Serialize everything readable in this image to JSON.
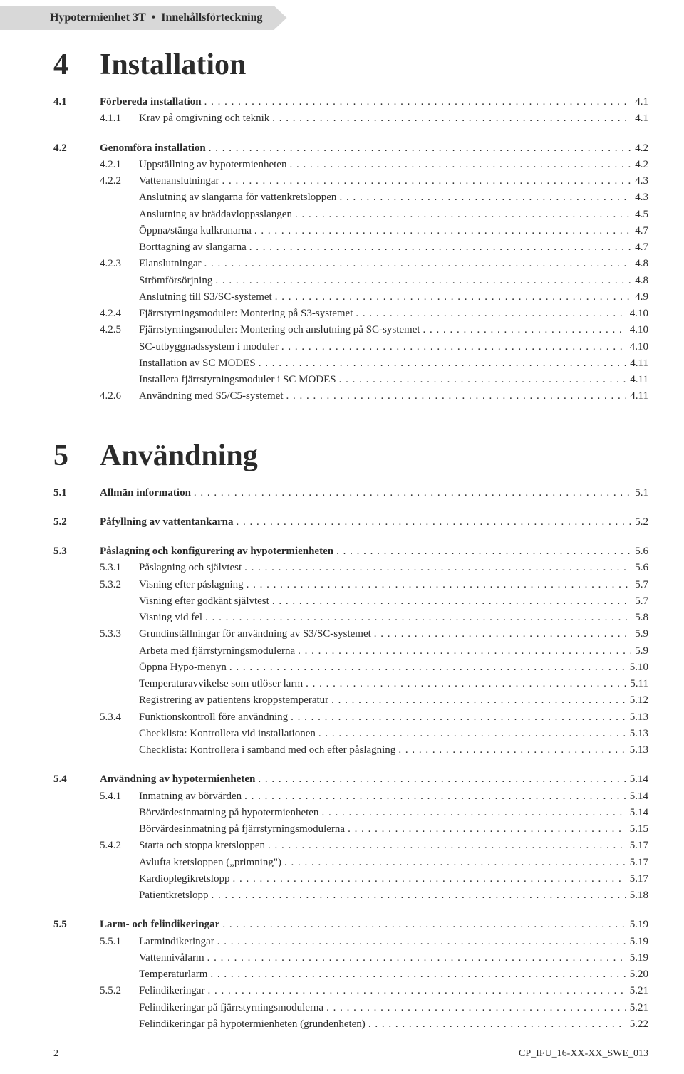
{
  "header": {
    "product": "Hypotermienhet 3T",
    "section": "Innehållsförteckning"
  },
  "footer": {
    "pageNum": "2",
    "docId": "CP_IFU_16-XX-XX_SWE_013"
  },
  "chapters": [
    {
      "num": "4",
      "title": "Installation",
      "sections": [
        {
          "num": "4.1",
          "title": "Förbereda installation",
          "page": "4.1",
          "items": [
            {
              "sub": "4.1.1",
              "label": "Krav på omgivning och teknik",
              "page": "4.1"
            }
          ]
        },
        {
          "num": "4.2",
          "title": "Genomföra installation",
          "page": "4.2",
          "items": [
            {
              "sub": "4.2.1",
              "label": "Uppställning av hypotermienheten",
              "page": "4.2"
            },
            {
              "sub": "4.2.2",
              "label": "Vattenanslutningar",
              "page": "4.3"
            },
            {
              "sub": "",
              "label": "Anslutning av slangarna för vattenkretsloppen",
              "page": "4.3"
            },
            {
              "sub": "",
              "label": "Anslutning av bräddavloppsslangen",
              "page": "4.5"
            },
            {
              "sub": "",
              "label": "Öppna/stänga kulkranarna",
              "page": "4.7"
            },
            {
              "sub": "",
              "label": "Borttagning av slangarna",
              "page": "4.7"
            },
            {
              "sub": "4.2.3",
              "label": "Elanslutningar",
              "page": "4.8"
            },
            {
              "sub": "",
              "label": "Strömförsörjning",
              "page": "4.8"
            },
            {
              "sub": "",
              "label": "Anslutning till S3/SC-systemet",
              "page": "4.9"
            },
            {
              "sub": "4.2.4",
              "label": "Fjärrstyrningsmoduler: Montering på S3-systemet",
              "page": "4.10"
            },
            {
              "sub": "4.2.5",
              "label": "Fjärrstyrningsmoduler: Montering och anslutning på SC-systemet",
              "page": "4.10"
            },
            {
              "sub": "",
              "label": "SC-utbyggnadssystem i moduler",
              "page": "4.10"
            },
            {
              "sub": "",
              "label": "Installation av SC MODES",
              "page": "4.11"
            },
            {
              "sub": "",
              "label": "Installera fjärrstyrningsmoduler i SC MODES",
              "page": "4.11"
            },
            {
              "sub": "4.2.6",
              "label": "Användning med S5/C5-systemet",
              "page": "4.11"
            }
          ]
        }
      ]
    },
    {
      "num": "5",
      "title": "Användning",
      "sections": [
        {
          "num": "5.1",
          "title": "Allmän information",
          "page": "5.1",
          "items": []
        },
        {
          "num": "5.2",
          "title": "Påfyllning av vattentankarna",
          "page": "5.2",
          "items": []
        },
        {
          "num": "5.3",
          "title": "Påslagning och konfigurering av hypotermienheten",
          "page": "5.6",
          "items": [
            {
              "sub": "5.3.1",
              "label": "Påslagning och självtest",
              "page": "5.6"
            },
            {
              "sub": "5.3.2",
              "label": "Visning efter påslagning",
              "page": "5.7"
            },
            {
              "sub": "",
              "label": "Visning efter godkänt självtest",
              "page": "5.7"
            },
            {
              "sub": "",
              "label": "Visning vid fel",
              "page": "5.8"
            },
            {
              "sub": "5.3.3",
              "label": "Grundinställningar för användning av S3/SC-systemet",
              "page": "5.9"
            },
            {
              "sub": "",
              "label": "Arbeta med fjärrstyrningsmodulerna",
              "page": "5.9"
            },
            {
              "sub": "",
              "label": "Öppna Hypo-menyn",
              "page": "5.10"
            },
            {
              "sub": "",
              "label": "Temperaturavvikelse som utlöser larm",
              "page": "5.11"
            },
            {
              "sub": "",
              "label": "Registrering av patientens kroppstemperatur",
              "page": "5.12"
            },
            {
              "sub": "5.3.4",
              "label": "Funktionskontroll före användning",
              "page": "5.13"
            },
            {
              "sub": "",
              "label": "Checklista: Kontrollera vid installationen",
              "page": "5.13"
            },
            {
              "sub": "",
              "label": "Checklista: Kontrollera i samband med och efter påslagning",
              "page": "5.13"
            }
          ]
        },
        {
          "num": "5.4",
          "title": "Användning av hypotermienheten",
          "page": "5.14",
          "items": [
            {
              "sub": "5.4.1",
              "label": "Inmatning av börvärden",
              "page": "5.14"
            },
            {
              "sub": "",
              "label": "Börvärdesinmatning på hypotermienheten",
              "page": "5.14"
            },
            {
              "sub": "",
              "label": "Börvärdesinmatning på fjärrstyrningsmodulerna",
              "page": "5.15"
            },
            {
              "sub": "5.4.2",
              "label": "Starta och stoppa kretsloppen",
              "page": "5.17"
            },
            {
              "sub": "",
              "label": "Avlufta kretsloppen („primning\")",
              "page": "5.17"
            },
            {
              "sub": "",
              "label": "Kardioplegikretslopp",
              "page": "5.17"
            },
            {
              "sub": "",
              "label": "Patientkretslopp",
              "page": "5.18"
            }
          ]
        },
        {
          "num": "5.5",
          "title": "Larm- och felindikeringar",
          "page": "5.19",
          "items": [
            {
              "sub": "5.5.1",
              "label": "Larmindikeringar",
              "page": "5.19"
            },
            {
              "sub": "",
              "label": "Vattennivålarm",
              "page": "5.19"
            },
            {
              "sub": "",
              "label": "Temperaturlarm",
              "page": "5.20"
            },
            {
              "sub": "5.5.2",
              "label": "Felindikeringar",
              "page": "5.21"
            },
            {
              "sub": "",
              "label": "Felindikeringar på fjärrstyrningsmodulerna",
              "page": "5.21"
            },
            {
              "sub": "",
              "label": "Felindikeringar på hypotermienheten (grundenheten)",
              "page": "5.22"
            }
          ]
        }
      ]
    }
  ]
}
